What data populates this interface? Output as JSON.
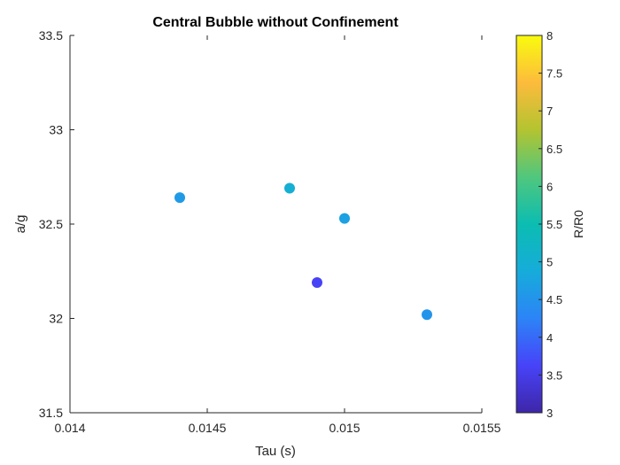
{
  "chart_data": {
    "type": "scatter",
    "title": "Central Bubble without Confinement",
    "xlabel": "Tau (s)",
    "ylabel": "a/g",
    "xlim": [
      0.014,
      0.0155
    ],
    "ylim": [
      31.5,
      33.5
    ],
    "xticks": [
      0.014,
      0.0145,
      0.015,
      0.0155
    ],
    "xtick_labels": [
      "0.014",
      "0.0145",
      "0.015",
      "0.0155"
    ],
    "yticks": [
      31.5,
      32,
      32.5,
      33,
      33.5
    ],
    "ytick_labels": [
      "31.5",
      "32",
      "32.5",
      "33",
      "33.5"
    ],
    "grid": false,
    "points": [
      {
        "x": 0.0144,
        "y": 32.64,
        "c": 4.6
      },
      {
        "x": 0.0148,
        "y": 32.69,
        "c": 5.0
      },
      {
        "x": 0.0149,
        "y": 32.19,
        "c": 3.6
      },
      {
        "x": 0.015,
        "y": 32.53,
        "c": 4.7
      },
      {
        "x": 0.0153,
        "y": 32.02,
        "c": 4.5
      }
    ],
    "colorbar": {
      "label": "R/R0",
      "clim": [
        3,
        8
      ],
      "ticks": [
        3,
        3.5,
        4,
        4.5,
        5,
        5.5,
        6,
        6.5,
        7,
        7.5,
        8
      ],
      "tick_labels": [
        "3",
        "3.5",
        "4",
        "4.5",
        "5",
        "5.5",
        "6",
        "6.5",
        "7",
        "7.5",
        "8"
      ],
      "colormap": "parula",
      "colormap_stops": [
        "#3e26a8",
        "#4743f8",
        "#2c84f7",
        "#16acda",
        "#0bbdb1",
        "#50c77d",
        "#b3c430",
        "#fdbb3c",
        "#f9fb0e"
      ]
    }
  }
}
